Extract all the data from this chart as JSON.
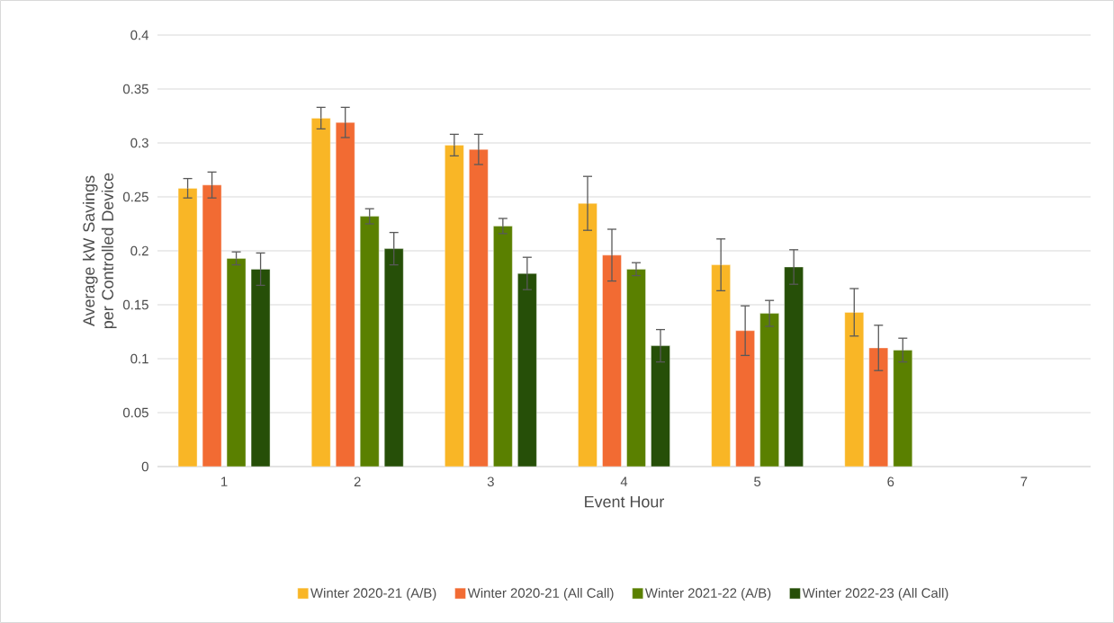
{
  "chart_data": {
    "type": "bar",
    "xlabel": "Event Hour",
    "ylabel": "Average kW Savings per Controlled Device",
    "categories": [
      "1",
      "2",
      "3",
      "4",
      "5",
      "6",
      "7"
    ],
    "ylim": [
      0,
      0.4
    ],
    "yticks": [
      0,
      0.05,
      0.1,
      0.15,
      0.2,
      0.25,
      0.3,
      0.35,
      0.4
    ],
    "grid": "y",
    "legend": "bottom",
    "series": [
      {
        "name": "Winter 2020-21 (A/B)",
        "color": "#f9b626",
        "values": [
          0.258,
          0.323,
          0.298,
          0.244,
          0.187,
          0.143,
          null
        ],
        "errors": [
          0.009,
          0.01,
          0.01,
          0.025,
          0.024,
          0.022,
          null
        ]
      },
      {
        "name": "Winter 2020-21 (All Call)",
        "color": "#f26b33",
        "values": [
          0.261,
          0.319,
          0.294,
          0.196,
          0.126,
          0.11,
          null
        ],
        "errors": [
          0.012,
          0.014,
          0.014,
          0.024,
          0.023,
          0.021,
          null
        ]
      },
      {
        "name": "Winter 2021-22 (A/B)",
        "color": "#5a8000",
        "values": [
          0.193,
          0.232,
          0.223,
          0.183,
          0.142,
          0.108,
          null
        ],
        "errors": [
          0.006,
          0.007,
          0.007,
          0.006,
          0.012,
          0.011,
          null
        ]
      },
      {
        "name": "Winter 2022-23 (All Call)",
        "color": "#264f08",
        "values": [
          0.183,
          0.202,
          0.179,
          0.112,
          0.185,
          null,
          null
        ],
        "errors": [
          0.015,
          0.015,
          0.015,
          0.015,
          0.016,
          null,
          null
        ]
      }
    ]
  }
}
